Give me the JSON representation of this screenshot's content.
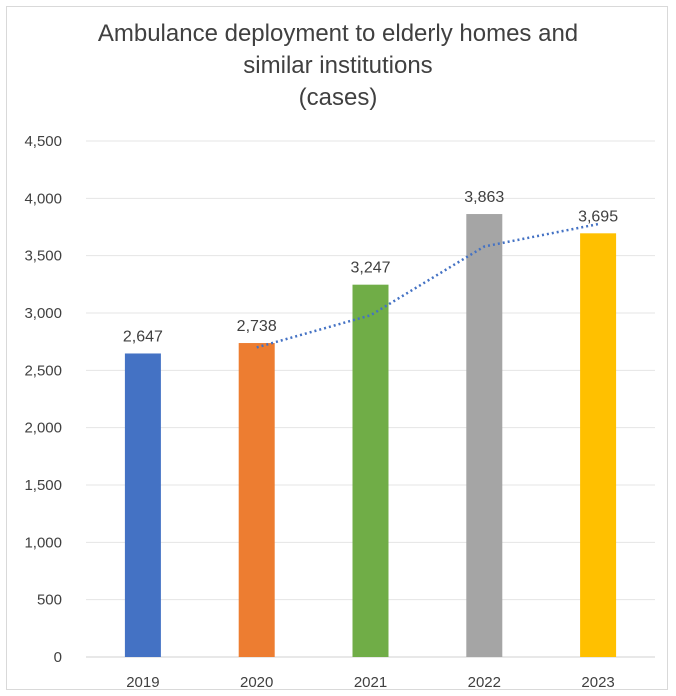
{
  "chart_data": {
    "type": "bar",
    "title_lines": [
      "Ambulance deployment to elderly homes and",
      "similar institutions",
      "(cases)"
    ],
    "categories": [
      "2019",
      "2020",
      "2021",
      "2022",
      "2023"
    ],
    "values": [
      2647,
      2738,
      3247,
      3863,
      3695
    ],
    "value_labels": [
      "2,647",
      "2,738",
      "3,247",
      "3,863",
      "3,695"
    ],
    "colors": [
      "#4472c4",
      "#ed7d31",
      "#70ad47",
      "#a5a5a5",
      "#ffc000"
    ],
    "ylim": [
      0,
      4500
    ],
    "yticks": [
      0,
      500,
      1000,
      1500,
      2000,
      2500,
      3000,
      3500,
      4000,
      4500
    ],
    "ytick_labels": [
      "0",
      "500",
      "1,000",
      "1,500",
      "2,000",
      "2,500",
      "3,000",
      "3,500",
      "4,000",
      "4,500"
    ],
    "grid": true,
    "trendline": {
      "style": "dotted",
      "color": "#4472c4",
      "categories": [
        "2020",
        "2021",
        "2022",
        "2023"
      ],
      "values": [
        2700,
        2980,
        3580,
        3775
      ]
    }
  }
}
